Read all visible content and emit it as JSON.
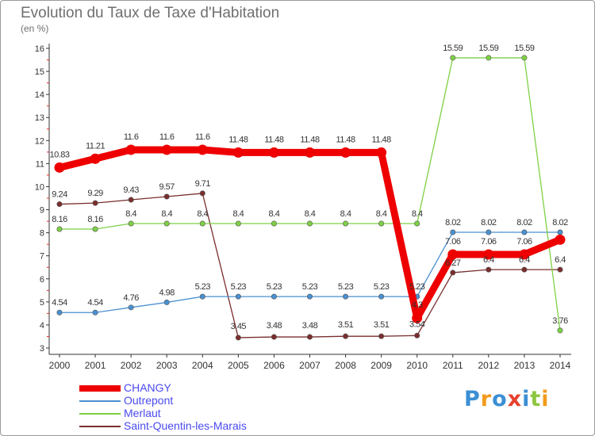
{
  "title": "Evolution du Taux de Taxe d'Habitation",
  "unit_label": "(en %)",
  "brand": {
    "letters": [
      "P",
      "r",
      "o",
      "x",
      "i",
      "t",
      "i"
    ],
    "colors": [
      "#3b8fd4",
      "#f29b1d",
      "#3b8fd4",
      "#e7412e",
      "#3b8fd4",
      "#8cc63f",
      "#f29b1d"
    ]
  },
  "chart_data": {
    "type": "line",
    "title": "Evolution du Taux de Taxe d'Habitation",
    "ylabel": "(en %)",
    "xlabel": "",
    "x": [
      "2000",
      "2001",
      "2002",
      "2003",
      "2004",
      "2005",
      "2006",
      "2007",
      "2008",
      "2009",
      "2010",
      "2011",
      "2012",
      "2013",
      "2014"
    ],
    "ylim": [
      3,
      16
    ],
    "yticks": [
      3,
      4,
      5,
      6,
      7,
      8,
      9,
      10,
      11,
      12,
      13,
      14,
      15,
      16
    ],
    "grid": false,
    "legend": "bottom-left",
    "series": [
      {
        "name": "CHANGY",
        "color": "#ee0000",
        "values": [
          10.83,
          11.21,
          11.6,
          11.6,
          11.6,
          11.48,
          11.48,
          11.48,
          11.48,
          11.48,
          4.3,
          7.06,
          7.06,
          7.06,
          7.7
        ],
        "labels": [
          "10.83",
          "11.21",
          "11.6",
          "11.6",
          "11.6",
          "11.48",
          "11.48",
          "11.48",
          "11.48",
          "11.48",
          "4.3",
          "7.06",
          "7.06",
          "7.06",
          ""
        ]
      },
      {
        "name": "Outrepont",
        "color": "#4a90d0",
        "values": [
          4.54,
          4.54,
          4.76,
          4.98,
          5.23,
          5.23,
          5.23,
          5.23,
          5.23,
          5.23,
          5.23,
          8.02,
          8.02,
          8.02,
          8.02
        ],
        "labels": [
          "4.54",
          "4.54",
          "4.76",
          "4.98",
          "5.23",
          "5.23",
          "5.23",
          "5.23",
          "5.23",
          "5.23",
          "5.23",
          "8.02",
          "8.02",
          "8.02",
          "8.02"
        ]
      },
      {
        "name": "Merlaut",
        "color": "#7ed045",
        "values": [
          8.16,
          8.16,
          8.4,
          8.4,
          8.4,
          8.4,
          8.4,
          8.4,
          8.4,
          8.4,
          8.4,
          15.59,
          15.59,
          15.59,
          3.76
        ],
        "labels": [
          "8.16",
          "8.16",
          "8.4",
          "8.4",
          "8.4",
          "8.4",
          "8.4",
          "8.4",
          "8.4",
          "8.4",
          "8.4",
          "15.59",
          "15.59",
          "15.59",
          "3.76"
        ]
      },
      {
        "name": "Saint-Quentin-les-Marais",
        "color": "#7a2e2e",
        "values": [
          9.24,
          9.29,
          9.43,
          9.57,
          9.71,
          3.45,
          3.48,
          3.48,
          3.51,
          3.51,
          3.54,
          6.27,
          6.4,
          6.4,
          6.4
        ],
        "labels": [
          "9.24",
          "9.29",
          "9.43",
          "9.57",
          "9.71",
          "3.45",
          "3.48",
          "3.48",
          "3.51",
          "3.51",
          "3.54",
          "6.27",
          "6.4",
          "6.4",
          "6.4"
        ]
      }
    ]
  }
}
